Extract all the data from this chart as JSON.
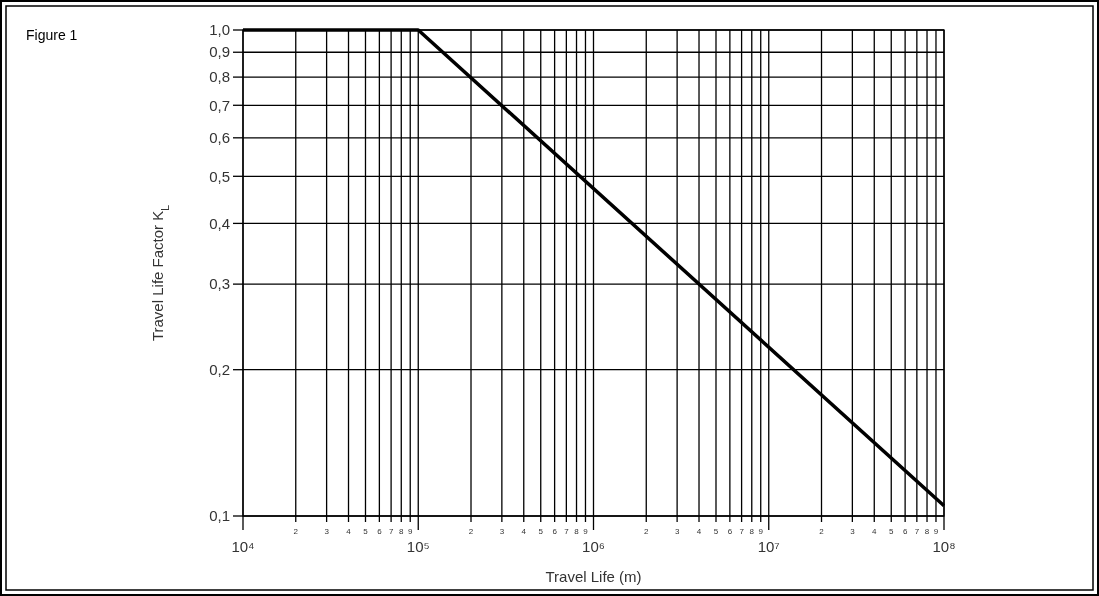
{
  "chart_data": {
    "type": "line",
    "title": "Figure 1",
    "xlabel": "Travel Life (m)",
    "ylabel": "Travel Life Factor K$_{L}$",
    "x": [
      10000,
      100000,
      100000000
    ],
    "series": [
      {
        "color": "#000000",
        "values": [
          1.0,
          1.0,
          0.105
        ]
      }
    ],
    "log": "xy",
    "grid": true,
    "marker": "none",
    "line_style": "solid",
    "xlim": [
      10000,
      100000000
    ],
    "ylim": [
      0.1,
      1.0
    ],
    "xticks": [
      {
        "value": 10000,
        "label": "10⁴"
      },
      {
        "value": 20000,
        "label": null
      },
      {
        "value": 30000,
        "label": null
      },
      {
        "value": 40000,
        "label": null
      },
      {
        "value": 50000,
        "label": null
      },
      {
        "value": 60000,
        "label": null
      },
      {
        "value": 70000,
        "label": null
      },
      {
        "value": 80000,
        "label": null
      },
      {
        "value": 90000,
        "label": null
      },
      {
        "value": 100000,
        "label": "10⁵"
      },
      {
        "value": 200000,
        "label": null
      },
      {
        "value": 300000,
        "label": null
      },
      {
        "value": 400000,
        "label": null
      },
      {
        "value": 500000,
        "label": null
      },
      {
        "value": 600000,
        "label": null
      },
      {
        "value": 700000,
        "label": null
      },
      {
        "value": 800000,
        "label": null
      },
      {
        "value": 900000,
        "label": null
      },
      {
        "value": 1000000,
        "label": "10⁶"
      },
      {
        "value": 2000000,
        "label": null
      },
      {
        "value": 3000000,
        "label": null
      },
      {
        "value": 4000000,
        "label": null
      },
      {
        "value": 5000000,
        "label": null
      },
      {
        "value": 6000000,
        "label": null
      },
      {
        "value": 7000000,
        "label": null
      },
      {
        "value": 8000000,
        "label": null
      },
      {
        "value": 9000000,
        "label": null
      },
      {
        "value": 10000000,
        "label": "10⁷"
      },
      {
        "value": 20000000,
        "label": null
      },
      {
        "value": 30000000,
        "label": null
      },
      {
        "value": 40000000,
        "label": null
      },
      {
        "value": 50000000,
        "label": null
      },
      {
        "value": 60000000,
        "label": null
      },
      {
        "value": 70000000,
        "label": null
      },
      {
        "value": 80000000,
        "label": null
      },
      {
        "value": 90000000,
        "label": null
      },
      {
        "value": 100000000,
        "label": "10⁸"
      }
    ],
    "yticks": [
      {
        "value": 0.1,
        "label": "0,1"
      },
      {
        "value": 0.2,
        "label": "0,2"
      },
      {
        "value": 0.3,
        "label": "0,3"
      },
      {
        "value": 0.4,
        "label": "0,4"
      },
      {
        "value": 0.5,
        "label": "0,5"
      },
      {
        "value": 0.6,
        "label": "0,6"
      },
      {
        "value": 0.7,
        "label": "0,7"
      },
      {
        "value": 0.8,
        "label": "0,8"
      },
      {
        "value": 0.9,
        "label": "0,9"
      },
      {
        "value": 1.0,
        "label": "1,0"
      }
    ],
    "annotations": [
      "2",
      "3",
      "4",
      "5",
      "6",
      "7",
      "8",
      "9",
      "2",
      "3",
      "4",
      "5",
      "6",
      "7",
      "8",
      "9",
      "2",
      "3",
      "4",
      "5",
      "6",
      "7",
      "8",
      "9",
      "2",
      "3",
      "4",
      "5",
      "6",
      "7",
      "8",
      "9"
    ]
  }
}
